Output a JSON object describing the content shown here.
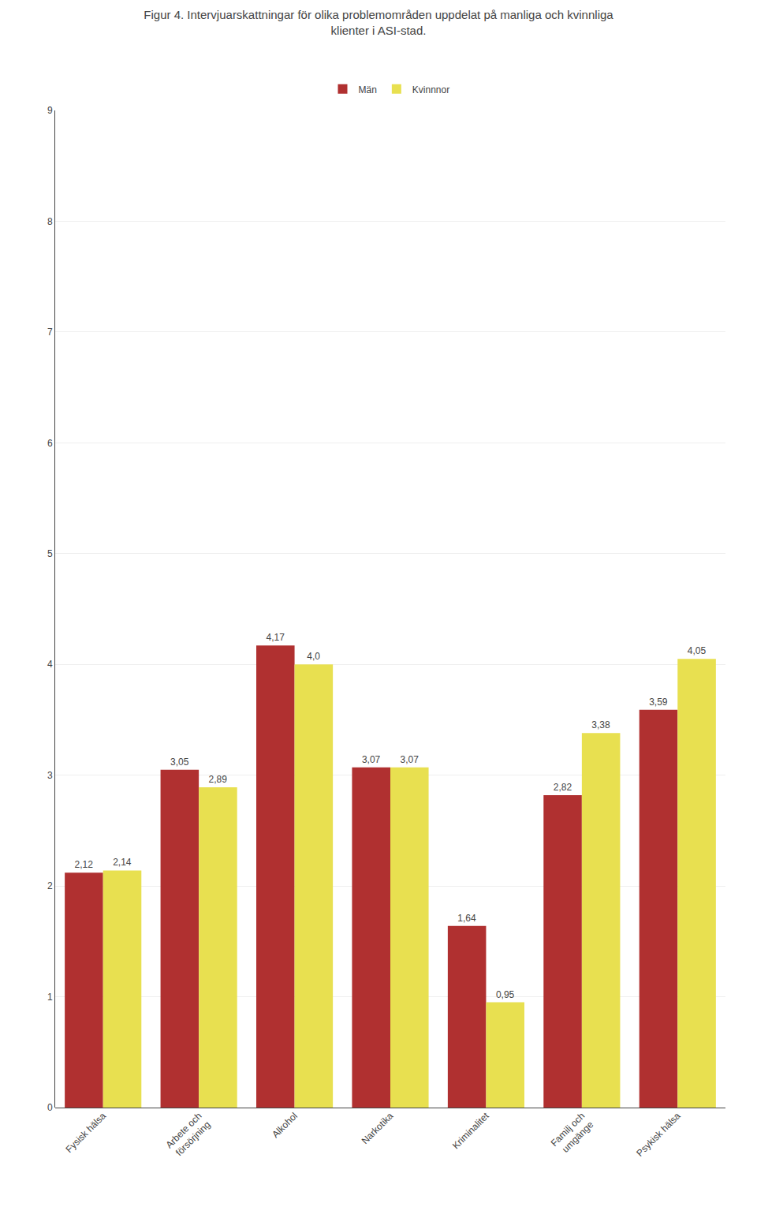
{
  "chart_data": {
    "type": "bar",
    "title": "Figur 4. Intervjuarskattningar för olika problemområden uppdelat på manliga och kvinnliga\nklienter i ASI-stad.",
    "categories": [
      "Fysisk hälsa",
      "Arbete och\nförsörjning",
      "Alkohol",
      "Narkotika",
      "Kriminalitet",
      "Familj och\numgänge",
      "Psykisk hälsa"
    ],
    "series": [
      {
        "name": "Män",
        "color": "#b03030",
        "values": [
          2.12,
          3.05,
          4.17,
          3.07,
          1.64,
          2.82,
          3.59
        ],
        "value_labels": [
          "2,12",
          "3,05",
          "4,17",
          "3,07",
          "1,64",
          "2,82",
          "3,59"
        ]
      },
      {
        "name": "Kvinnnor",
        "color": "#e8e050",
        "values": [
          2.14,
          2.89,
          4.0,
          3.07,
          0.95,
          3.38,
          4.05
        ],
        "value_labels": [
          "2,14",
          "2,89",
          "4,0",
          "3,07",
          "0,95",
          "3,38",
          "4,05"
        ]
      }
    ],
    "ylim": [
      0,
      9
    ],
    "yticks": [
      0,
      1,
      2,
      3,
      4,
      5,
      6,
      7,
      8,
      9
    ],
    "grid": true,
    "legend": "top",
    "data_labels": true
  }
}
